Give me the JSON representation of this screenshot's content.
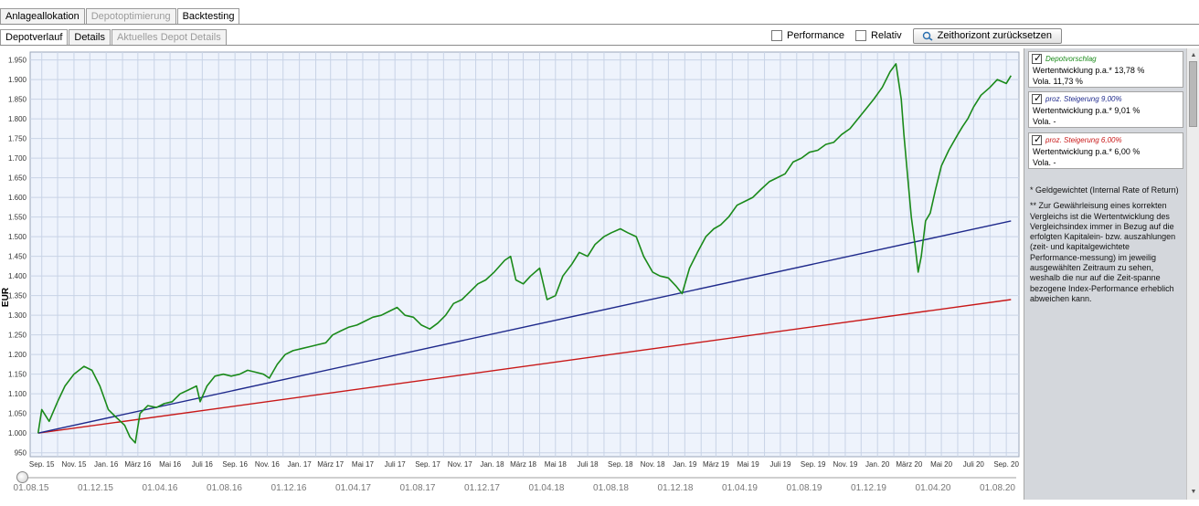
{
  "tabs_main": [
    {
      "label": "Anlageallokation",
      "state": "normal"
    },
    {
      "label": "Depotoptimierung",
      "state": "disabled"
    },
    {
      "label": "Backtesting",
      "state": "active"
    }
  ],
  "tabs_sub": [
    {
      "label": "Depotverlauf",
      "state": "active"
    },
    {
      "label": "Details",
      "state": "normal"
    },
    {
      "label": "Aktuelles Depot Details",
      "state": "disabled"
    }
  ],
  "toolbar": {
    "performance_label": "Performance",
    "relativ_label": "Relativ",
    "reset_label": "Zeithorizont zurücksetzen"
  },
  "legend": [
    {
      "name": "Depotvorschlag",
      "color": "#1a8a1a",
      "line1": "Wertentwicklung p.a.* 13,78 %",
      "line2": "Vola. 11,73 %"
    },
    {
      "name": "proz. Steigerung 9,00%",
      "color": "#1f2a8c",
      "line1": "Wertentwicklung p.a.* 9,01 %",
      "line2": "Vola. -"
    },
    {
      "name": "proz. Steigerung 6,00%",
      "color": "#c81818",
      "line1": "Wertentwicklung p.a.* 6,00 %",
      "line2": "Vola. -"
    }
  ],
  "notes": {
    "n1": "* Geldgewichtet (Internal Rate of Return)",
    "n2": "** Zur Gewährleisung eines korrekten Vergleichs ist die Wertentwicklung des Vergleichsindex immer in Bezug auf die erfolgten Kapitalein- bzw. auszahlungen (zeit- und kapitalgewichtete Performance-messung) im jeweilig ausgewählten Zeitraum zu sehen, weshalb die nur auf die Zeit-spanne bezogene Index-Performance erheblich abweichen kann."
  },
  "slider_ticks": [
    "01.08.15",
    "01.12.15",
    "01.04.16",
    "01.08.16",
    "01.12.16",
    "01.04.17",
    "01.08.17",
    "01.12.17",
    "01.04.18",
    "01.08.18",
    "01.12.18",
    "01.04.19",
    "01.08.19",
    "01.12.19",
    "01.04.20",
    "01.08.20"
  ],
  "chart_data": {
    "type": "line",
    "xlabel": "",
    "ylabel": "EUR",
    "xlim": [
      "2015-08-10",
      "2020-09-25"
    ],
    "ylim": [
      940,
      1970
    ],
    "grid": true,
    "legend": "right-panel",
    "x_ticks": [
      "Sep. 15",
      "Nov. 15",
      "Jan. 16",
      "März 16",
      "Mai 16",
      "Juli 16",
      "Sep. 16",
      "Nov. 16",
      "Jan. 17",
      "März 17",
      "Mai 17",
      "Juli 17",
      "Sep. 17",
      "Nov. 17",
      "Jan. 18",
      "März 18",
      "Mai 18",
      "Juli 18",
      "Sep. 18",
      "Nov. 18",
      "Jan. 19",
      "März 19",
      "Mai 19",
      "Juli 19",
      "Sep. 19",
      "Nov. 19",
      "Jan. 20",
      "März 20",
      "Mai 20",
      "Juli 20",
      "Sep. 20"
    ],
    "y_ticks": [
      950,
      1000,
      1050,
      1100,
      1150,
      1200,
      1250,
      1300,
      1350,
      1400,
      1450,
      1500,
      1550,
      1600,
      1650,
      1700,
      1750,
      1800,
      1850,
      1900,
      1950
    ],
    "y_tick_labels": [
      "950",
      "1.000",
      "1.050",
      "1.100",
      "1.150",
      "1.200",
      "1.250",
      "1.300",
      "1.350",
      "1.400",
      "1.450",
      "1.500",
      "1.550",
      "1.600",
      "1.650",
      "1.700",
      "1.750",
      "1.800",
      "1.850",
      "1.900",
      "1.950"
    ],
    "series": [
      {
        "name": "Depotvorschlag",
        "color": "#1a8a1a",
        "x": [
          "2015-08-25",
          "2015-09-01",
          "2015-09-15",
          "2015-10-01",
          "2015-10-15",
          "2015-11-01",
          "2015-11-20",
          "2015-12-05",
          "2015-12-20",
          "2016-01-05",
          "2016-01-20",
          "2016-02-05",
          "2016-02-15",
          "2016-02-25",
          "2016-03-05",
          "2016-03-20",
          "2016-04-05",
          "2016-04-20",
          "2016-05-05",
          "2016-05-20",
          "2016-06-05",
          "2016-06-20",
          "2016-06-27",
          "2016-07-10",
          "2016-07-25",
          "2016-08-10",
          "2016-08-25",
          "2016-09-10",
          "2016-09-25",
          "2016-10-10",
          "2016-10-25",
          "2016-11-05",
          "2016-11-20",
          "2016-12-05",
          "2016-12-20",
          "2017-01-05",
          "2017-01-20",
          "2017-02-05",
          "2017-02-20",
          "2017-03-05",
          "2017-03-20",
          "2017-04-05",
          "2017-04-20",
          "2017-05-05",
          "2017-05-20",
          "2017-06-05",
          "2017-06-20",
          "2017-07-05",
          "2017-07-20",
          "2017-08-05",
          "2017-08-20",
          "2017-09-05",
          "2017-09-20",
          "2017-10-05",
          "2017-10-20",
          "2017-11-05",
          "2017-11-20",
          "2017-12-05",
          "2017-12-20",
          "2018-01-05",
          "2018-01-25",
          "2018-02-05",
          "2018-02-15",
          "2018-03-01",
          "2018-03-15",
          "2018-04-01",
          "2018-04-15",
          "2018-05-01",
          "2018-05-15",
          "2018-06-01",
          "2018-06-15",
          "2018-07-01",
          "2018-07-15",
          "2018-08-01",
          "2018-08-15",
          "2018-09-01",
          "2018-09-15",
          "2018-10-01",
          "2018-10-15",
          "2018-11-01",
          "2018-11-15",
          "2018-12-01",
          "2018-12-15",
          "2018-12-27",
          "2019-01-10",
          "2019-01-25",
          "2019-02-10",
          "2019-02-25",
          "2019-03-10",
          "2019-03-25",
          "2019-04-10",
          "2019-04-25",
          "2019-05-10",
          "2019-05-25",
          "2019-06-10",
          "2019-06-25",
          "2019-07-10",
          "2019-07-25",
          "2019-08-10",
          "2019-08-25",
          "2019-09-10",
          "2019-09-25",
          "2019-10-10",
          "2019-10-25",
          "2019-11-10",
          "2019-11-25",
          "2019-12-10",
          "2019-12-25",
          "2020-01-10",
          "2020-01-25",
          "2020-02-05",
          "2020-02-15",
          "2020-02-20",
          "2020-02-28",
          "2020-03-05",
          "2020-03-12",
          "2020-03-18",
          "2020-03-24",
          "2020-04-01",
          "2020-04-10",
          "2020-04-20",
          "2020-05-01",
          "2020-05-15",
          "2020-06-01",
          "2020-06-10",
          "2020-06-20",
          "2020-07-01",
          "2020-07-15",
          "2020-08-01",
          "2020-08-15",
          "2020-09-01",
          "2020-09-10"
        ],
        "y": [
          1000,
          1060,
          1030,
          1080,
          1120,
          1150,
          1170,
          1160,
          1120,
          1060,
          1040,
          1020,
          990,
          975,
          1050,
          1070,
          1065,
          1075,
          1080,
          1100,
          1110,
          1120,
          1080,
          1120,
          1145,
          1150,
          1145,
          1150,
          1160,
          1155,
          1150,
          1140,
          1175,
          1200,
          1210,
          1215,
          1220,
          1225,
          1230,
          1250,
          1260,
          1270,
          1275,
          1285,
          1295,
          1300,
          1310,
          1320,
          1300,
          1295,
          1275,
          1265,
          1280,
          1300,
          1330,
          1340,
          1360,
          1380,
          1390,
          1410,
          1440,
          1450,
          1390,
          1380,
          1400,
          1420,
          1340,
          1350,
          1400,
          1430,
          1460,
          1450,
          1480,
          1500,
          1510,
          1520,
          1510,
          1500,
          1450,
          1410,
          1400,
          1395,
          1375,
          1355,
          1420,
          1460,
          1500,
          1520,
          1530,
          1550,
          1580,
          1590,
          1600,
          1620,
          1640,
          1650,
          1660,
          1690,
          1700,
          1715,
          1720,
          1735,
          1740,
          1760,
          1775,
          1800,
          1825,
          1850,
          1880,
          1920,
          1940,
          1850,
          1760,
          1640,
          1550,
          1480,
          1410,
          1450,
          1540,
          1560,
          1620,
          1680,
          1720,
          1760,
          1780,
          1800,
          1830,
          1860,
          1880,
          1900,
          1890,
          1910
        ]
      },
      {
        "name": "proz. Steigerung 9,00%",
        "color": "#1f2a8c",
        "x": [
          "2015-08-25",
          "2020-09-10"
        ],
        "y": [
          1000,
          1540
        ]
      },
      {
        "name": "proz. Steigerung 6,00%",
        "color": "#c81818",
        "x": [
          "2015-08-25",
          "2020-09-10"
        ],
        "y": [
          1000,
          1340
        ]
      }
    ]
  }
}
